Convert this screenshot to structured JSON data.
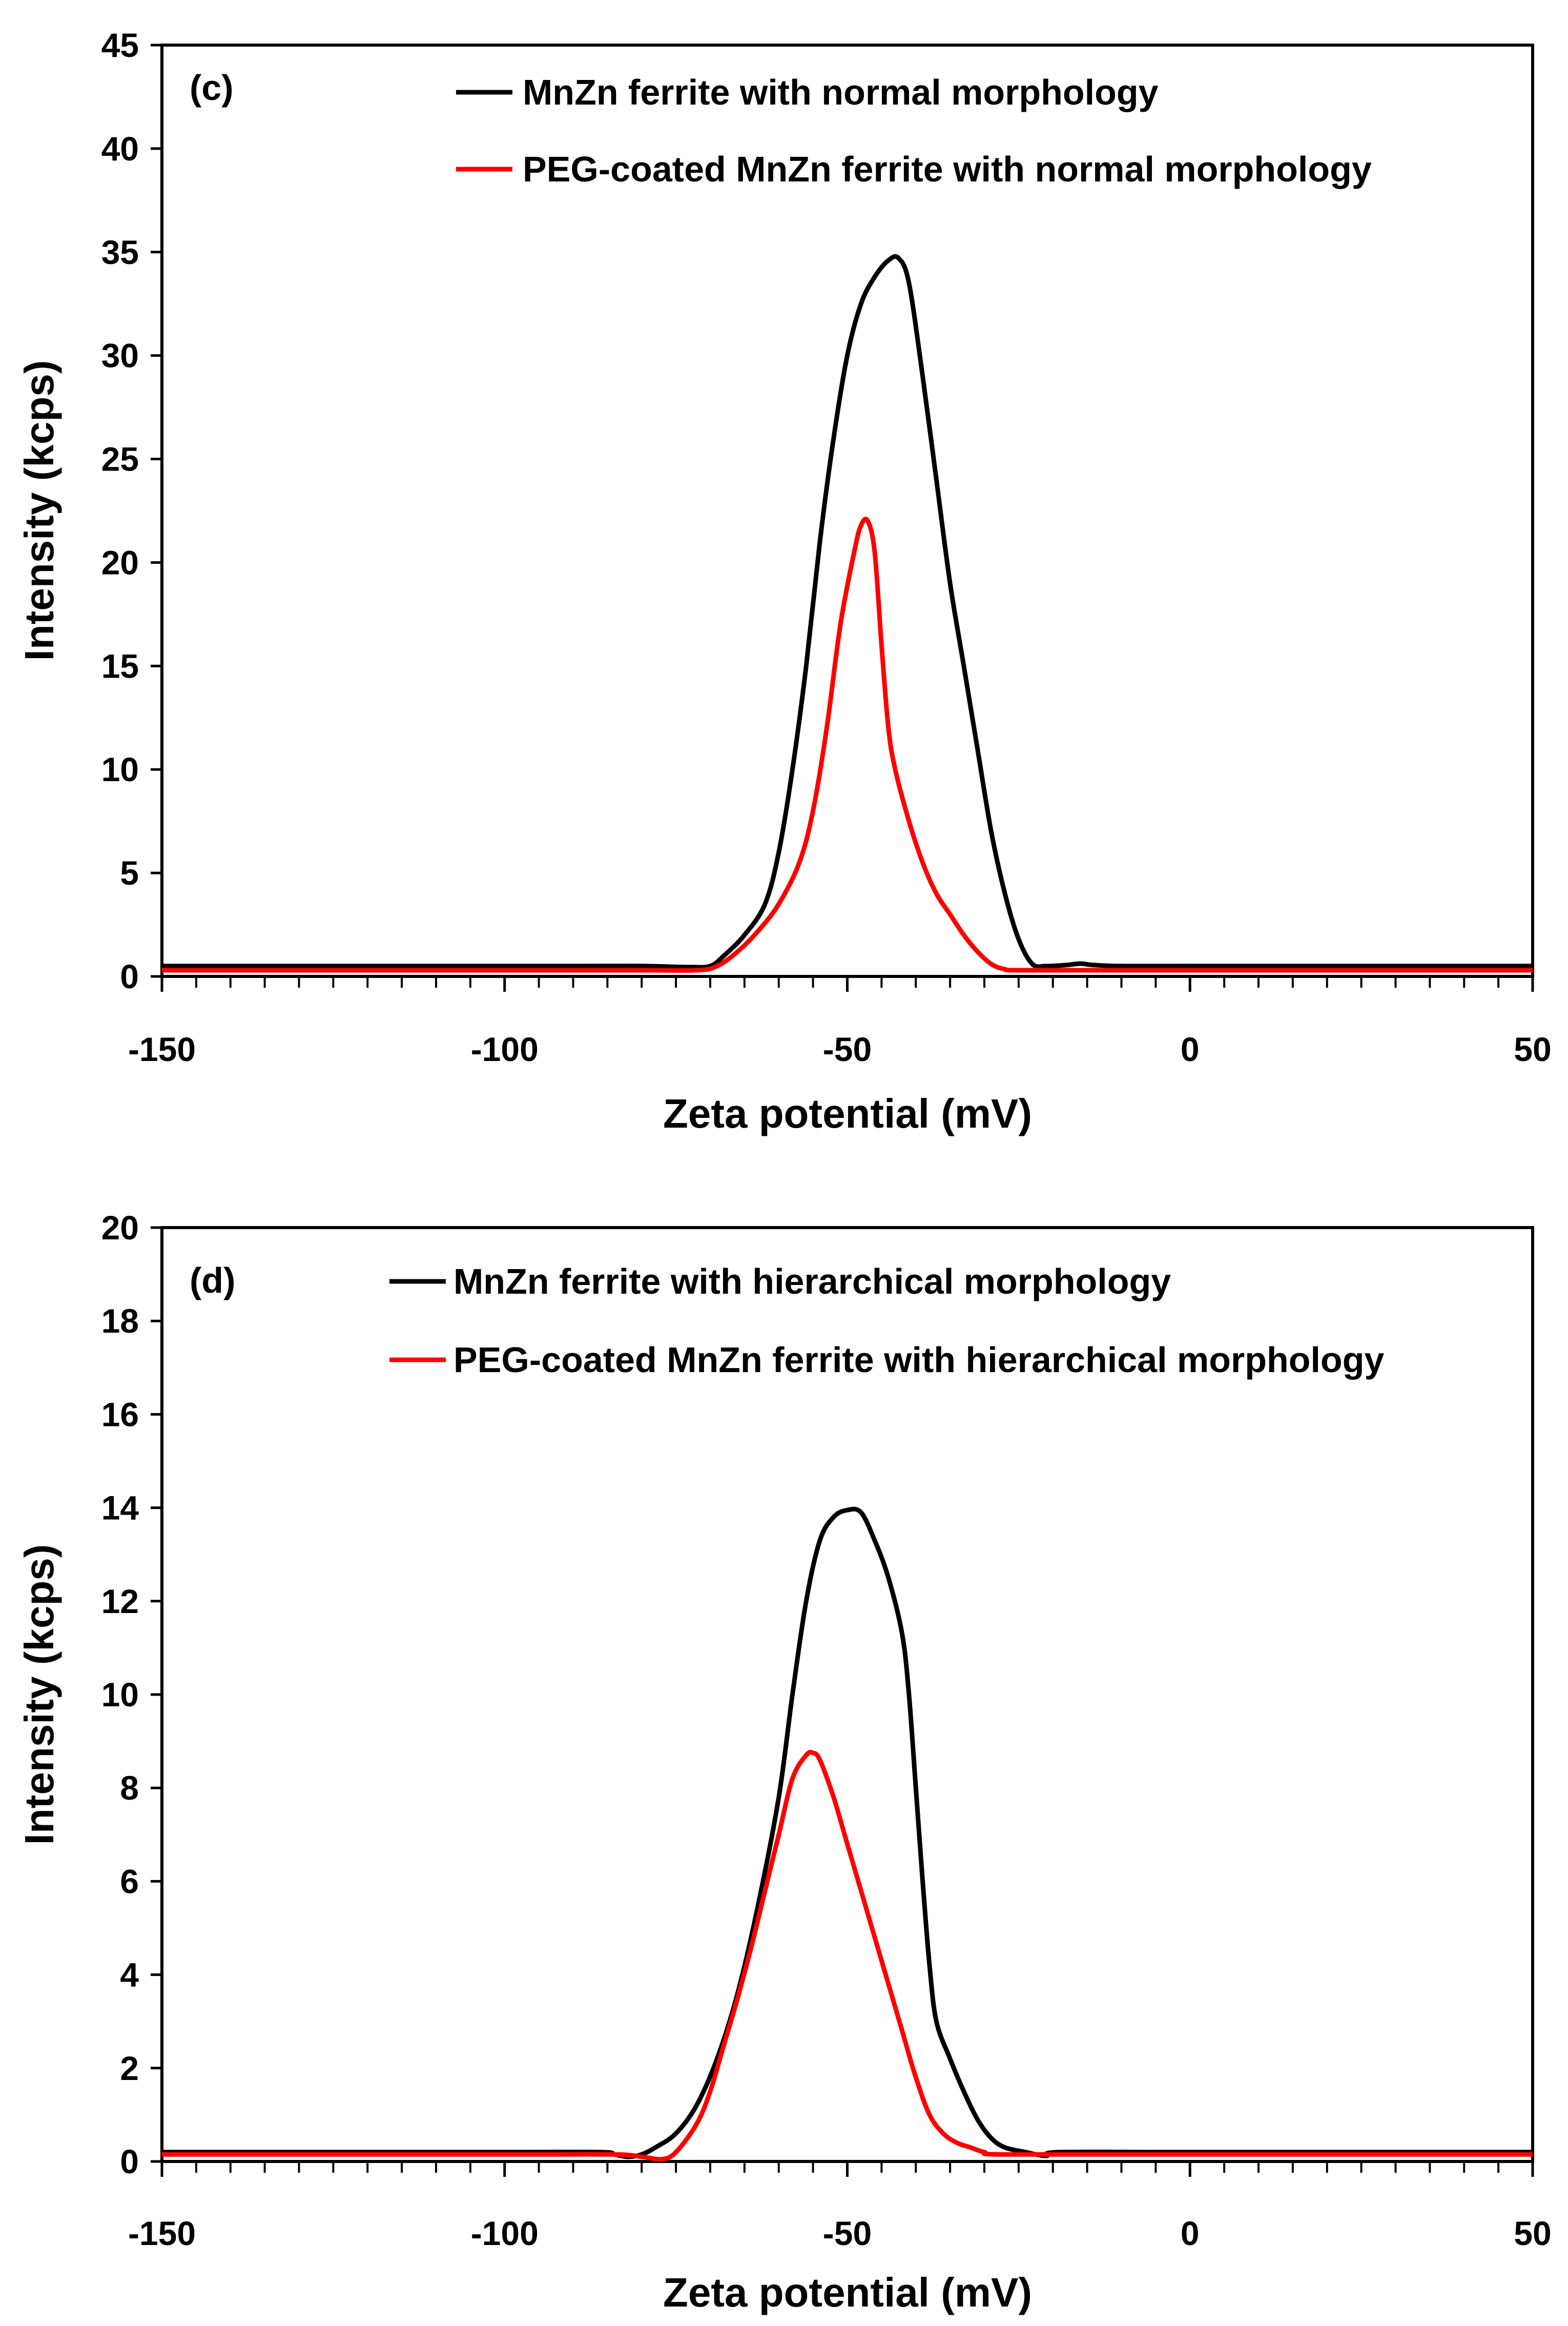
{
  "colors": {
    "black_series": "#000000",
    "red_series": "#ff0000"
  },
  "chart_data": [
    {
      "type": "line",
      "panel_label": "(c)",
      "xlabel": "Zeta potential (mV)",
      "ylabel": "Intensity (kcps)",
      "xlim": [
        -150,
        50
      ],
      "ylim": [
        0,
        45
      ],
      "xticks": [
        -150,
        -100,
        -50,
        0,
        50
      ],
      "yticks": [
        0,
        5,
        10,
        15,
        20,
        25,
        30,
        35,
        40,
        45
      ],
      "x_minor_step": 5,
      "series": [
        {
          "name": "MnZn ferrite with normal morphology",
          "color": "#000000",
          "points": [
            [
              -150,
              0.5
            ],
            [
              -120,
              0.5
            ],
            [
              -90,
              0.5
            ],
            [
              -80,
              0.5
            ],
            [
              -73,
              0.45
            ],
            [
              -70,
              0.5
            ],
            [
              -68,
              1.0
            ],
            [
              -65,
              2.0
            ],
            [
              -62,
              3.5
            ],
            [
              -60,
              6
            ],
            [
              -58,
              10
            ],
            [
              -56,
              15
            ],
            [
              -54,
              21
            ],
            [
              -52,
              26
            ],
            [
              -50,
              30
            ],
            [
              -48,
              32.5
            ],
            [
              -46,
              33.8
            ],
            [
              -44,
              34.6
            ],
            [
              -42.5,
              34.7
            ],
            [
              -41,
              33.5
            ],
            [
              -39,
              29
            ],
            [
              -37,
              24
            ],
            [
              -35,
              19
            ],
            [
              -33,
              15
            ],
            [
              -31,
              11
            ],
            [
              -29,
              7
            ],
            [
              -27,
              4
            ],
            [
              -25,
              1.8
            ],
            [
              -23,
              0.6
            ],
            [
              -21,
              0.5
            ],
            [
              -18,
              0.55
            ],
            [
              -16,
              0.62
            ],
            [
              -14,
              0.55
            ],
            [
              -10,
              0.5
            ],
            [
              0,
              0.5
            ],
            [
              50,
              0.5
            ]
          ]
        },
        {
          "name": "PEG-coated MnZn ferrite with normal morphology",
          "color": "#ff0000",
          "points": [
            [
              -150,
              0.3
            ],
            [
              -100,
              0.3
            ],
            [
              -80,
              0.3
            ],
            [
              -72,
              0.3
            ],
            [
              -69,
              0.5
            ],
            [
              -66,
              1.2
            ],
            [
              -63,
              2.2
            ],
            [
              -60,
              3.5
            ],
            [
              -57,
              5.5
            ],
            [
              -55,
              8
            ],
            [
              -53,
              12
            ],
            [
              -51,
              17
            ],
            [
              -49,
              20.5
            ],
            [
              -48,
              21.8
            ],
            [
              -47,
              22
            ],
            [
              -46,
              20.5
            ],
            [
              -45,
              16
            ],
            [
              -44,
              12
            ],
            [
              -43,
              10
            ],
            [
              -41,
              7.5
            ],
            [
              -39,
              5.5
            ],
            [
              -37,
              4
            ],
            [
              -35,
              3
            ],
            [
              -33,
              2
            ],
            [
              -31,
              1.2
            ],
            [
              -29,
              0.6
            ],
            [
              -27,
              0.35
            ],
            [
              -24,
              0.3
            ],
            [
              0,
              0.3
            ],
            [
              50,
              0.3
            ]
          ]
        }
      ]
    },
    {
      "type": "line",
      "panel_label": "(d)",
      "xlabel": "Zeta potential (mV)",
      "ylabel": "Intensity (kcps)",
      "xlim": [
        -150,
        50
      ],
      "ylim": [
        0,
        20
      ],
      "xticks": [
        -150,
        -100,
        -50,
        0,
        50
      ],
      "yticks": [
        0,
        2,
        4,
        6,
        8,
        10,
        12,
        14,
        16,
        18,
        20
      ],
      "x_minor_step": 5,
      "series": [
        {
          "name": "MnZn ferrite with hierarchical morphology",
          "color": "#000000",
          "points": [
            [
              -150,
              0.2
            ],
            [
              -100,
              0.2
            ],
            [
              -86,
              0.2
            ],
            [
              -84,
              0.15
            ],
            [
              -82,
              0.1
            ],
            [
              -80,
              0.15
            ],
            [
              -78,
              0.3
            ],
            [
              -75,
              0.6
            ],
            [
              -72,
              1.2
            ],
            [
              -69,
              2.2
            ],
            [
              -66,
              3.6
            ],
            [
              -63,
              5.5
            ],
            [
              -60,
              7.8
            ],
            [
              -58,
              10
            ],
            [
              -56,
              12
            ],
            [
              -54,
              13.3
            ],
            [
              -52,
              13.8
            ],
            [
              -50,
              13.95
            ],
            [
              -48,
              13.9
            ],
            [
              -46,
              13.3
            ],
            [
              -44,
              12.5
            ],
            [
              -42,
              11.3
            ],
            [
              -41,
              10
            ],
            [
              -40,
              8
            ],
            [
              -39,
              6
            ],
            [
              -38,
              4.2
            ],
            [
              -37,
              3.0
            ],
            [
              -35,
              2.2
            ],
            [
              -33,
              1.5
            ],
            [
              -31,
              0.9
            ],
            [
              -29,
              0.5
            ],
            [
              -27,
              0.3
            ],
            [
              -24,
              0.2
            ],
            [
              -21,
              0.12
            ],
            [
              -19,
              0.2
            ],
            [
              0,
              0.2
            ],
            [
              50,
              0.2
            ]
          ]
        },
        {
          "name": "PEG-coated MnZn ferrite with hierarchical morphology",
          "color": "#ff0000",
          "points": [
            [
              -150,
              0.15
            ],
            [
              -100,
              0.15
            ],
            [
              -84,
              0.15
            ],
            [
              -80,
              0.1
            ],
            [
              -77,
              0.05
            ],
            [
              -75,
              0.2
            ],
            [
              -72,
              0.8
            ],
            [
              -70,
              1.5
            ],
            [
              -68,
              2.5
            ],
            [
              -66,
              3.5
            ],
            [
              -64,
              4.6
            ],
            [
              -62,
              5.8
            ],
            [
              -60,
              7
            ],
            [
              -58,
              8.2
            ],
            [
              -56,
              8.7
            ],
            [
              -55,
              8.75
            ],
            [
              -54,
              8.6
            ],
            [
              -52,
              7.8
            ],
            [
              -50,
              6.8
            ],
            [
              -48,
              5.8
            ],
            [
              -46,
              4.8
            ],
            [
              -44,
              3.8
            ],
            [
              -42,
              2.8
            ],
            [
              -40,
              1.8
            ],
            [
              -38,
              1.0
            ],
            [
              -36,
              0.6
            ],
            [
              -34,
              0.4
            ],
            [
              -32,
              0.3
            ],
            [
              -30,
              0.2
            ],
            [
              -27,
              0.15
            ],
            [
              0,
              0.15
            ],
            [
              50,
              0.15
            ]
          ]
        }
      ]
    }
  ]
}
